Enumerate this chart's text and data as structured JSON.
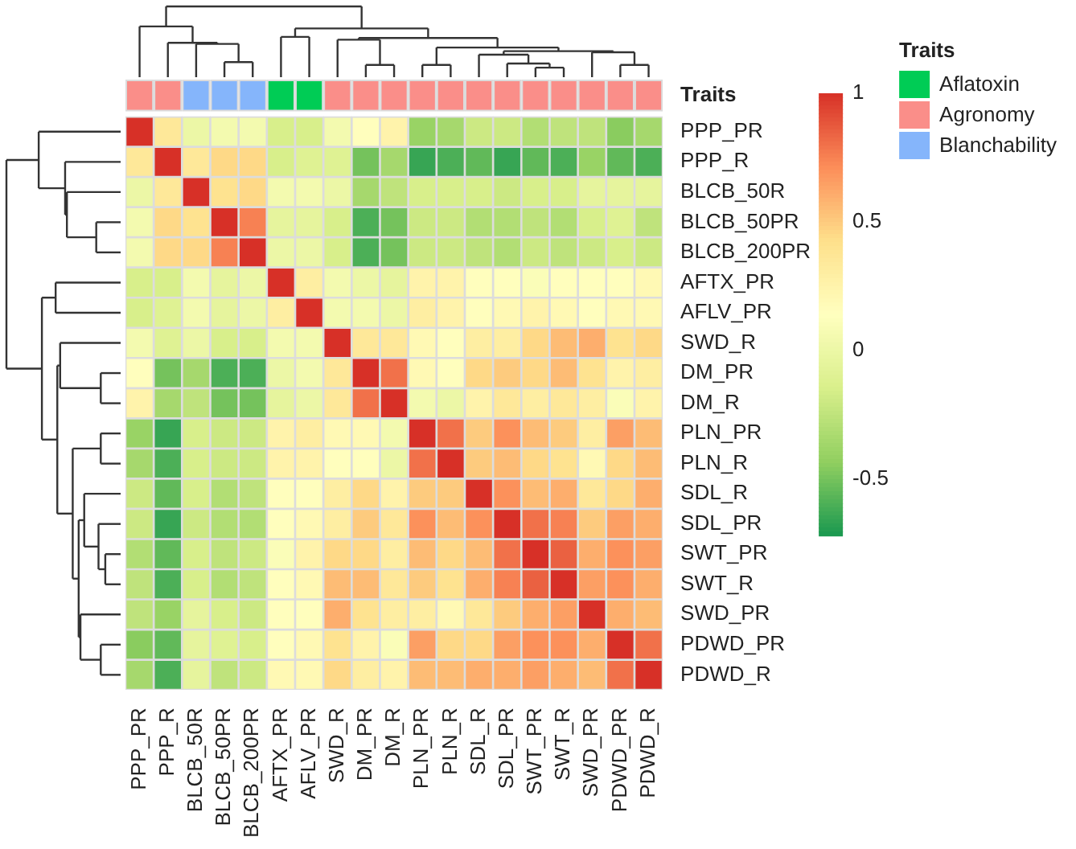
{
  "chart_data": {
    "type": "heatmap",
    "categories": [
      "PPP_PR",
      "PPP_R",
      "BLCB_50R",
      "BLCB_50PR",
      "BLCB_200PR",
      "AFTX_PR",
      "AFLV_PR",
      "SWD_R",
      "DM_PR",
      "DM_R",
      "PLN_PR",
      "PLN_R",
      "SDL_R",
      "SDL_PR",
      "SWT_PR",
      "SWT_R",
      "SWD_PR",
      "PDWD_PR",
      "PDWD_R"
    ],
    "y_categories": [
      "PPP_PR",
      "PPP_R",
      "BLCB_50R",
      "BLCB_50PR",
      "BLCB_200PR",
      "AFTX_PR",
      "AFLV_PR",
      "SWD_R",
      "DM_PR",
      "DM_R",
      "PLN_PR",
      "PLN_R",
      "SDL_R",
      "SDL_PR",
      "SWT_PR",
      "SWT_R",
      "SWD_PR",
      "PDWD_PR",
      "PDWD_R"
    ],
    "cells": [
      [
        1,
        0.35,
        0,
        0.05,
        0.05,
        -0.15,
        -0.15,
        0.05,
        0.15,
        0.25,
        -0.4,
        -0.35,
        -0.2,
        -0.2,
        -0.3,
        -0.25,
        -0.25,
        -0.45,
        -0.35
      ],
      [
        0.35,
        1,
        0.35,
        0.45,
        0.45,
        -0.15,
        -0.1,
        -0.1,
        -0.5,
        -0.35,
        -0.65,
        -0.6,
        -0.55,
        -0.65,
        -0.55,
        -0.6,
        -0.4,
        -0.55,
        -0.6
      ],
      [
        0,
        0.35,
        1,
        0.4,
        0.45,
        0.05,
        0.05,
        0,
        -0.35,
        -0.25,
        -0.15,
        -0.15,
        -0.15,
        -0.2,
        -0.15,
        -0.15,
        -0.05,
        -0.05,
        -0.05
      ],
      [
        0.05,
        0.45,
        0.4,
        1,
        0.75,
        -0.05,
        -0.05,
        -0.15,
        -0.6,
        -0.5,
        -0.2,
        -0.2,
        -0.3,
        -0.3,
        -0.25,
        -0.3,
        -0.15,
        -0.1,
        -0.25
      ],
      [
        0.05,
        0.45,
        0.45,
        0.75,
        1,
        0,
        0,
        -0.15,
        -0.6,
        -0.5,
        -0.2,
        -0.2,
        -0.25,
        -0.3,
        -0.2,
        -0.25,
        -0.2,
        -0.15,
        -0.2
      ],
      [
        -0.15,
        -0.15,
        0.05,
        -0.05,
        0,
        1,
        0.3,
        0.05,
        0,
        -0.05,
        0.25,
        0.25,
        0.15,
        0.15,
        0.1,
        0.15,
        0.15,
        0.15,
        0.2
      ],
      [
        -0.15,
        -0.1,
        0.05,
        -0.05,
        0,
        0.3,
        1,
        0.05,
        0.05,
        0,
        0.3,
        0.25,
        0.15,
        0.2,
        0.25,
        0.2,
        0.15,
        0.2,
        0.2
      ],
      [
        0.05,
        -0.1,
        0,
        -0.15,
        -0.15,
        0.05,
        0.05,
        1,
        0.35,
        0.35,
        0.2,
        0.15,
        0.3,
        0.3,
        0.45,
        0.55,
        0.6,
        0.4,
        0.45
      ],
      [
        0.15,
        -0.5,
        -0.35,
        -0.6,
        -0.6,
        0,
        0.05,
        0.35,
        1,
        0.8,
        0.2,
        0.15,
        0.45,
        0.5,
        0.45,
        0.55,
        0.4,
        0.25,
        0.3
      ],
      [
        0.25,
        -0.35,
        -0.25,
        -0.5,
        -0.5,
        -0.05,
        0,
        0.35,
        0.8,
        1,
        0.05,
        0,
        0.25,
        0.35,
        0.3,
        0.35,
        0.3,
        0.1,
        0.25
      ],
      [
        -0.4,
        -0.65,
        -0.15,
        -0.2,
        -0.2,
        0.25,
        0.3,
        0.2,
        0.2,
        0.05,
        1,
        0.8,
        0.5,
        0.7,
        0.55,
        0.5,
        0.3,
        0.65,
        0.55
      ],
      [
        -0.35,
        -0.6,
        -0.15,
        -0.2,
        -0.2,
        0.25,
        0.25,
        0.15,
        0.15,
        0,
        0.8,
        1,
        0.5,
        0.55,
        0.45,
        0.4,
        0.2,
        0.45,
        0.55
      ],
      [
        -0.2,
        -0.55,
        -0.15,
        -0.3,
        -0.25,
        0.15,
        0.15,
        0.3,
        0.45,
        0.25,
        0.5,
        0.5,
        1,
        0.7,
        0.55,
        0.6,
        0.35,
        0.45,
        0.6
      ],
      [
        -0.2,
        -0.65,
        -0.2,
        -0.3,
        -0.3,
        0.15,
        0.2,
        0.3,
        0.5,
        0.35,
        0.7,
        0.55,
        0.7,
        1,
        0.8,
        0.75,
        0.5,
        0.65,
        0.6
      ],
      [
        -0.3,
        -0.55,
        -0.15,
        -0.25,
        -0.2,
        0.1,
        0.25,
        0.45,
        0.45,
        0.3,
        0.55,
        0.45,
        0.55,
        0.8,
        1,
        0.85,
        0.6,
        0.7,
        0.65
      ],
      [
        -0.25,
        -0.6,
        -0.15,
        -0.3,
        -0.25,
        0.15,
        0.2,
        0.55,
        0.55,
        0.35,
        0.5,
        0.4,
        0.6,
        0.75,
        0.85,
        1,
        0.65,
        0.7,
        0.6
      ],
      [
        -0.25,
        -0.4,
        -0.05,
        -0.15,
        -0.2,
        0.15,
        0.15,
        0.6,
        0.4,
        0.3,
        0.3,
        0.2,
        0.35,
        0.5,
        0.6,
        0.65,
        1,
        0.6,
        0.55
      ],
      [
        -0.45,
        -0.55,
        -0.05,
        -0.1,
        -0.15,
        0.15,
        0.2,
        0.4,
        0.25,
        0.1,
        0.65,
        0.45,
        0.45,
        0.65,
        0.7,
        0.7,
        0.6,
        1,
        0.8
      ],
      [
        -0.35,
        -0.6,
        -0.05,
        -0.25,
        -0.2,
        0.2,
        0.2,
        0.45,
        0.3,
        0.25,
        0.55,
        0.55,
        0.6,
        0.6,
        0.65,
        0.6,
        0.55,
        0.8,
        1
      ]
    ],
    "clim": [
      -0.72,
      1
    ],
    "cticks": [
      -0.5,
      0,
      0.5,
      1
    ],
    "legend_title": "Traits",
    "legend": "right",
    "series": [
      {
        "name": "Aflatoxin",
        "color": "#00cc55",
        "x": [
          "AFTX_PR",
          "AFLV_PR"
        ],
        "values": [
          null,
          null
        ]
      },
      {
        "name": "Agronomy",
        "color": "#fa8e89",
        "x": [
          "PPP_PR",
          "PPP_R",
          "SWD_R",
          "DM_PR",
          "DM_R",
          "PLN_PR",
          "PLN_R",
          "SDL_R",
          "SDL_PR",
          "SWT_PR",
          "SWT_R",
          "SWD_PR",
          "PDWD_PR",
          "PDWD_R"
        ],
        "values": [
          null,
          null,
          null,
          null,
          null,
          null,
          null,
          null,
          null,
          null,
          null,
          null,
          null,
          null
        ]
      },
      {
        "name": "Blanchability",
        "color": "#85b5fb",
        "x": [
          "BLCB_50R",
          "BLCB_50PR",
          "BLCB_200PR"
        ],
        "values": [
          null,
          null,
          null
        ]
      }
    ]
  }
}
